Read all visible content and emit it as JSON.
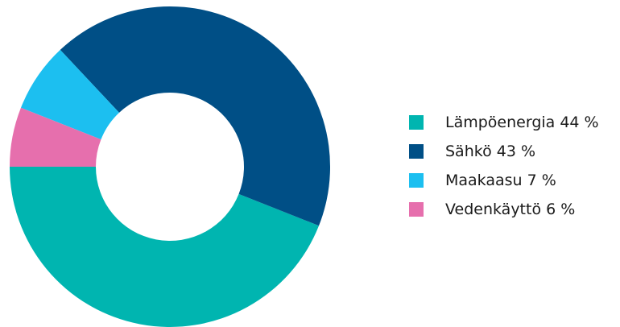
{
  "chart_data": {
    "type": "pie",
    "donut": true,
    "title": "",
    "legend_position": "right",
    "start_angle_deg": 180,
    "direction": "counterclockwise",
    "slices": [
      {
        "label": "Lämpöenergia 44 %",
        "value": 44,
        "color": "#00b5b0"
      },
      {
        "label": "Sähkö 43 %",
        "value": 43,
        "color": "#004f86"
      },
      {
        "label": "Maakaasu 7 %",
        "value": 7,
        "color": "#1cbff0"
      },
      {
        "label": "Vedenkäyttö 6 %",
        "value": 6,
        "color": "#e66fad"
      }
    ]
  }
}
